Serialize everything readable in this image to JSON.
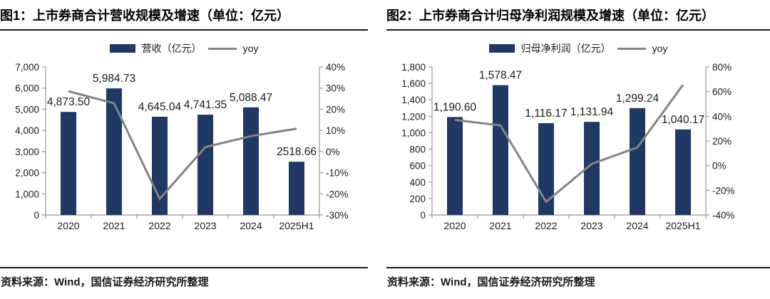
{
  "colors": {
    "bar": "#1F3864",
    "line": "#848484",
    "axis": "#A6A6A6",
    "text": "#1A1A1A",
    "rule": "#1A1A1A"
  },
  "panels": [
    {
      "title": "图1：上市券商合计营收规模及增速（单位：亿元）",
      "legend": {
        "bar_label": "营收（亿元）",
        "line_label": "yoy"
      },
      "source": "资料来源：Wind，国信证券经济研究所整理"
    },
    {
      "title": "图2：上市券商合计归母净利润规模及增速（单位：亿元）",
      "legend": {
        "bar_label": "归母净利润（亿元）",
        "line_label": "yoy"
      },
      "source": "资料来源：Wind，国信证券经济研究所整理"
    }
  ],
  "chart_data": [
    {
      "type": "bar+line",
      "title": "上市券商合计营收规模及增速（单位：亿元）",
      "categories": [
        "2020",
        "2021",
        "2022",
        "2023",
        "2024",
        "2025H1"
      ],
      "series": [
        {
          "name": "营收（亿元）",
          "chart": "bar",
          "axis": "left",
          "values": [
            4873.5,
            5984.73,
            4645.04,
            4741.35,
            5088.47,
            2518.66
          ],
          "labels": [
            "4,873.50",
            "5,984.73",
            "4,645.04",
            "4,741.35",
            "5,088.47",
            "2518.66"
          ]
        },
        {
          "name": "yoy",
          "chart": "line",
          "axis": "right",
          "values": [
            28.5,
            22.8,
            -22.4,
            2.1,
            7.3,
            10.8
          ]
        }
      ],
      "left_axis": {
        "min": 0,
        "max": 7000,
        "step": 1000,
        "tick_labels": [
          "0",
          "1,000",
          "2,000",
          "3,000",
          "4,000",
          "5,000",
          "6,000",
          "7,000"
        ]
      },
      "right_axis": {
        "min": -30,
        "max": 40,
        "step": 10,
        "tick_labels": [
          "-30%",
          "-20%",
          "-10%",
          "0%",
          "10%",
          "20%",
          "30%",
          "40%"
        ]
      },
      "legend_position": "top",
      "grid": false
    },
    {
      "type": "bar+line",
      "title": "上市券商合计归母净利润规模及增速（单位：亿元）",
      "categories": [
        "2020",
        "2021",
        "2022",
        "2023",
        "2024",
        "2025H1"
      ],
      "series": [
        {
          "name": "归母净利润（亿元）",
          "chart": "bar",
          "axis": "left",
          "values": [
            1190.6,
            1578.47,
            1116.17,
            1131.94,
            1299.24,
            1040.17
          ],
          "labels": [
            "1,190.60",
            "1,578.47",
            "1,116.17",
            "1,131.94",
            "1,299.24",
            "1,040.17"
          ]
        },
        {
          "name": "yoy",
          "chart": "line",
          "axis": "right",
          "values": [
            37.0,
            32.6,
            -29.3,
            1.4,
            14.8,
            65.5
          ]
        }
      ],
      "left_axis": {
        "min": 0,
        "max": 1800,
        "step": 200,
        "tick_labels": [
          "0",
          "200",
          "400",
          "600",
          "800",
          "1,000",
          "1,200",
          "1,400",
          "1,600",
          "1,800"
        ]
      },
      "right_axis": {
        "min": -40,
        "max": 80,
        "step": 20,
        "tick_labels": [
          "-40%",
          "-20%",
          "0%",
          "20%",
          "40%",
          "60%",
          "80%"
        ]
      },
      "legend_position": "top",
      "grid": false
    }
  ]
}
